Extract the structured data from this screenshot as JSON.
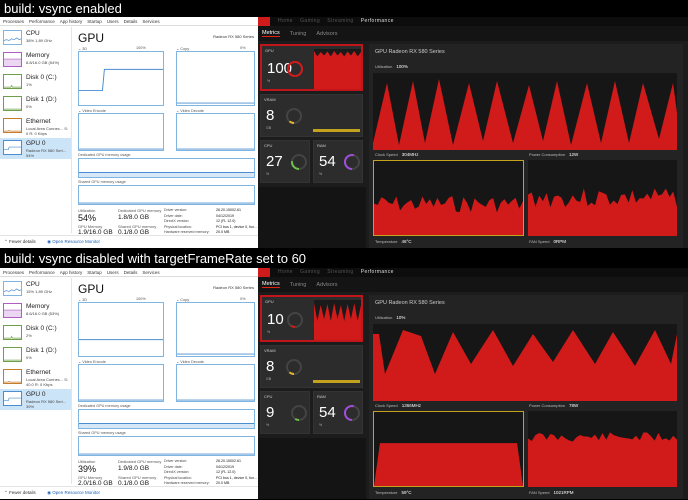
{
  "captions": [
    "build: vsync enabled",
    "build: vsync disabled with targetFrameRate set to 60"
  ],
  "taskmgr": {
    "tabs": [
      "Processes",
      "Performance",
      "App history",
      "Startup",
      "Users",
      "Details",
      "Services"
    ],
    "footer": {
      "fewer": "Fewer details",
      "open": "Open Resource Monitor"
    },
    "gpu_title": "GPU",
    "gpu_model": "Radeon RX 580 Series",
    "labels": {
      "three_d": "3D",
      "copy": "Copy",
      "video_encode": "Video Encode",
      "video_decode": "Video Decode",
      "dedicated": "Dedicated GPU memory usage",
      "shared": "Shared GPU memory usage",
      "utilization": "Utilization",
      "dedicated_mem": "Dedicated GPU memory",
      "gpu_memory": "GPU Memory",
      "shared_mem": "Shared GPU memory",
      "driver_version": "Driver version:",
      "driver_date": "Driver date:",
      "directx": "DirectX version:",
      "physical": "Physical location:",
      "hw_reserved": "Hardware reserved memory:"
    },
    "info": {
      "driver_version": "26.20.15002.61",
      "driver_date": "04/12/2019",
      "directx": "12 (FL 12.0)",
      "physical": "PCI bus 1, device 0, fun...",
      "hw_reserved": "20.0 MB"
    },
    "panels": [
      {
        "sidebar": [
          {
            "name": "CPU",
            "sub": "38% 1,89 GHz"
          },
          {
            "name": "Memory",
            "sub": "8.8/16.0 GB (54%)"
          },
          {
            "name": "Disk 0 (C:)",
            "sub": "1%"
          },
          {
            "name": "Disk 1 (D:)",
            "sub": "0%"
          },
          {
            "name": "Ethernet",
            "sub": "Local Area Connec... S: 0 R: 0 Kbps"
          },
          {
            "name": "GPU 0",
            "sub": "Radeon RX 580 Seri... 54%"
          }
        ],
        "pct100": "100%",
        "pct0": "0%",
        "utilization": "54%",
        "dedicated_mem": "1.8/8.0 GB",
        "gpu_memory": "1.9/16.0 GB",
        "shared_mem": "0.1/8.0 GB"
      },
      {
        "sidebar": [
          {
            "name": "CPU",
            "sub": "15% 1,89 GHz"
          },
          {
            "name": "Memory",
            "sub": "8.6/16.0 GB (53%)"
          },
          {
            "name": "Disk 0 (C:)",
            "sub": "2%"
          },
          {
            "name": "Disk 1 (D:)",
            "sub": "0%"
          },
          {
            "name": "Ethernet",
            "sub": "Local Area Connec... S: 40.0 R: 0 Kbps"
          },
          {
            "name": "GPU 0",
            "sub": "Radeon RX 580 Seri... 39%"
          }
        ],
        "pct100": "100%",
        "pct0": "0%",
        "utilization": "39%",
        "dedicated_mem": "1.9/8.0 GB",
        "gpu_memory": "2.0/16.0 GB",
        "shared_mem": "0.1/8.0 GB"
      }
    ]
  },
  "amd": {
    "topnav": [
      "Home",
      "Gaming",
      "Streaming",
      "Performance"
    ],
    "subtabs": [
      "Metrics",
      "Tuning",
      "Advisors"
    ],
    "gpu_name": "GPU   Radeon RX 580 Series",
    "labels": {
      "gpu": "GPU",
      "vram": "VRAM",
      "cpu": "CPU",
      "ram": "RAM",
      "utilization": "Utilization",
      "clock": "Clock Speed",
      "power": "Power Consumption",
      "temperature": "Temperature",
      "fan": "FAN Speed",
      "percent": "%",
      "gb": "GB"
    },
    "panels": [
      {
        "gpu_val": "100",
        "vram_val": "8",
        "cpu_val": "27",
        "ram_val": "54",
        "utilization": "100%",
        "clock": "304MHz",
        "power": "12W",
        "temperature": "46°C",
        "fan": "0RPM"
      },
      {
        "gpu_val": "10",
        "vram_val": "8",
        "cpu_val": "9",
        "ram_val": "54",
        "utilization": "10%",
        "clock": "1366MHz",
        "power": "78W",
        "temperature": "59°C",
        "fan": "1021RPM"
      }
    ]
  },
  "colors": {
    "amd_red": "#d11a1a",
    "accent_yellow": "#c5a21d",
    "gauge_green": "#6cc24a",
    "gauge_purple": "#a24de0",
    "tm_blue": "#4a8dd1"
  }
}
